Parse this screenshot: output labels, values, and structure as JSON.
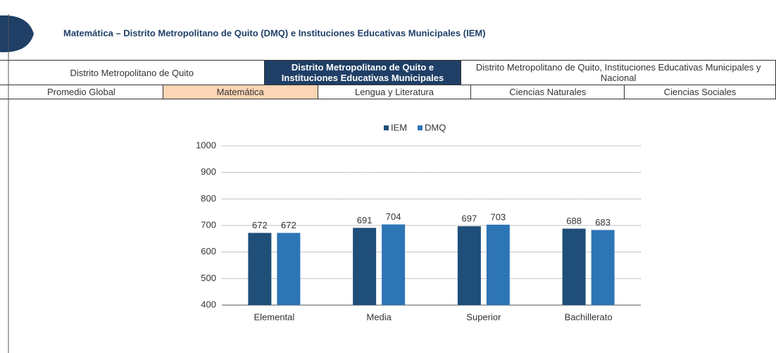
{
  "header": {
    "title": "Matemática – Distrito Metropolitano de Quito (DMQ) e Instituciones Educativas Municipales (IEM)"
  },
  "scope_tabs": [
    "Distrito Metropolitano de Quito",
    "Distrito Metropolitano de Quito e Instituciones Educativas Municipales",
    "Distrito Metropolitano de Quito, Instituciones Educativas Municipales y Nacional"
  ],
  "subject_tabs": [
    "Promedio Global",
    "Matemática",
    "Lengua y Literatura",
    "Ciencias Naturales",
    "Ciencias Sociales"
  ],
  "chart_data": {
    "type": "bar",
    "categories": [
      "Elemental",
      "Media",
      "Superior",
      "Bachillerato"
    ],
    "series": [
      {
        "name": "IEM",
        "color": "#1f4e79",
        "values": [
          672,
          691,
          697,
          688
        ]
      },
      {
        "name": "DMQ",
        "color": "#2e75b6",
        "values": [
          672,
          704,
          703,
          683
        ]
      }
    ],
    "ylim": [
      400,
      1000
    ],
    "yticks": [
      400,
      500,
      600,
      700,
      800,
      900,
      1000
    ],
    "grid": true,
    "legend": "top"
  }
}
